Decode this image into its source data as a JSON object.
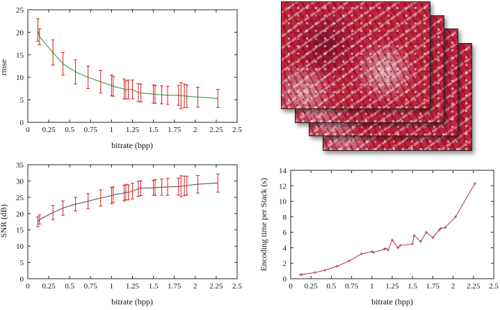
{
  "colors": {
    "rmse_line": "#3e9a3e",
    "snr_line": "#6b4b6b",
    "time_line": "#b04060",
    "errorbar": "#d02020"
  },
  "image_stack": {
    "icon": "histology-slide-stack-icon",
    "count": 4
  },
  "chart_data": [
    {
      "id": "rmse",
      "type": "line",
      "xlabel": "bitrate (bpp)",
      "ylabel": "rmse",
      "xlim": [
        0,
        2.5
      ],
      "ylim": [
        0,
        25
      ],
      "xticks": [
        "0",
        "0.25",
        "0.5",
        "0.75",
        "1",
        "1.25",
        "1.5",
        "1.75",
        "2",
        "2.25",
        "2.5"
      ],
      "yticks": [
        "0",
        "5",
        "10",
        "15",
        "20",
        "25"
      ],
      "grid": false,
      "x": [
        0.12,
        0.14,
        0.3,
        0.42,
        0.57,
        0.72,
        0.87,
        1.0,
        1.02,
        1.15,
        1.17,
        1.2,
        1.25,
        1.32,
        1.35,
        1.5,
        1.52,
        1.6,
        1.67,
        1.8,
        1.83,
        1.87,
        1.9,
        2.03,
        2.27
      ],
      "y": [
        20.5,
        19.0,
        15.5,
        13.0,
        11.2,
        10.0,
        9.0,
        8.2,
        8.0,
        7.4,
        7.2,
        7.3,
        7.3,
        6.6,
        6.5,
        6.3,
        6.2,
        6.1,
        6.0,
        6.0,
        5.9,
        5.9,
        5.8,
        5.6,
        5.3
      ],
      "err": [
        2.5,
        1.8,
        2.8,
        2.5,
        2.7,
        2.5,
        2.5,
        2.3,
        2.2,
        2.2,
        2.0,
        2.1,
        2.1,
        2.0,
        2.0,
        2.0,
        2.0,
        2.0,
        2.0,
        2.2,
        2.9,
        2.6,
        2.5,
        2.2,
        2.0
      ]
    },
    {
      "id": "snr",
      "type": "line",
      "xlabel": "bitrate (bpp)",
      "ylabel": "SNR (dB)",
      "xlim": [
        0,
        2.5
      ],
      "ylim": [
        0,
        35
      ],
      "xticks": [
        "0",
        "0.25",
        "0.5",
        "0.75",
        "1",
        "1.25",
        "1.5",
        "1.75",
        "2",
        "2.25",
        "2.5"
      ],
      "yticks": [
        "0",
        "5",
        "10",
        "15",
        "20",
        "25",
        "30",
        "35"
      ],
      "grid": false,
      "x": [
        0.12,
        0.14,
        0.3,
        0.42,
        0.57,
        0.72,
        0.87,
        1.0,
        1.02,
        1.15,
        1.17,
        1.2,
        1.25,
        1.32,
        1.35,
        1.5,
        1.52,
        1.6,
        1.67,
        1.8,
        1.83,
        1.87,
        1.9,
        2.03,
        2.27
      ],
      "y": [
        17.5,
        18.2,
        20.3,
        21.7,
        22.9,
        23.8,
        24.8,
        25.5,
        25.8,
        26.3,
        26.6,
        26.5,
        26.9,
        27.6,
        27.8,
        27.9,
        28.0,
        28.1,
        28.2,
        28.3,
        28.4,
        28.5,
        28.6,
        29.0,
        29.4
      ],
      "err": [
        1.5,
        1.4,
        2.2,
        2.2,
        2.1,
        2.3,
        2.5,
        2.5,
        2.4,
        2.4,
        2.4,
        2.3,
        2.4,
        2.3,
        2.3,
        2.3,
        2.4,
        2.5,
        2.6,
        2.6,
        3.2,
        3.0,
        2.9,
        2.7,
        2.8
      ]
    },
    {
      "id": "time",
      "type": "line",
      "xlabel": "bitrate (bpp)",
      "ylabel": "Encoding time per Stack (s)",
      "xlim": [
        0,
        2.5
      ],
      "ylim": [
        0,
        14
      ],
      "xticks": [
        "0",
        "0.25",
        "0.5",
        "0.75",
        "1",
        "1.25",
        "1.5",
        "1.75",
        "2",
        "2.25",
        "2.5"
      ],
      "yticks": [
        "0",
        "2",
        "4",
        "6",
        "8",
        "10",
        "12",
        "14"
      ],
      "grid": false,
      "x": [
        0.12,
        0.14,
        0.3,
        0.42,
        0.57,
        0.72,
        0.87,
        1.0,
        1.02,
        1.15,
        1.17,
        1.2,
        1.25,
        1.32,
        1.35,
        1.5,
        1.52,
        1.6,
        1.67,
        1.75,
        1.83,
        1.85,
        1.9,
        2.03,
        2.27
      ],
      "y": [
        0.5,
        0.55,
        0.8,
        1.1,
        1.6,
        2.3,
        3.2,
        3.5,
        3.4,
        3.8,
        3.9,
        3.7,
        5.0,
        4.0,
        4.3,
        4.5,
        5.6,
        4.8,
        6.0,
        5.3,
        6.3,
        6.5,
        6.6,
        8.0,
        12.3
      ]
    }
  ]
}
